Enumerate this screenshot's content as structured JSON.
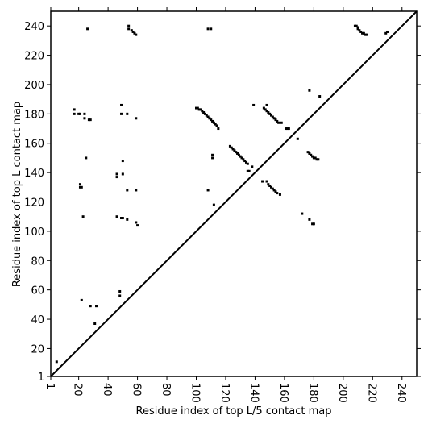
{
  "chart_data": {
    "type": "scatter",
    "xlabel": "Residue index of top L/5 contact map",
    "ylabel": "Residue index of top L contact map",
    "xlim": [
      1,
      250
    ],
    "ylim": [
      1,
      250
    ],
    "xticks": [
      1,
      20,
      40,
      60,
      80,
      100,
      120,
      140,
      160,
      180,
      200,
      220,
      240
    ],
    "yticks": [
      1,
      20,
      40,
      60,
      80,
      100,
      120,
      140,
      160,
      180,
      200,
      220,
      240
    ],
    "diagonal": true,
    "color": "#000000",
    "x": [
      5,
      26,
      54,
      54,
      56,
      57,
      58,
      59,
      108,
      110,
      208,
      209,
      210,
      210,
      211,
      212,
      213,
      214,
      215,
      216,
      229,
      230,
      17,
      17,
      20,
      21,
      24,
      24,
      27,
      28,
      49,
      49,
      53,
      59,
      25,
      21,
      21,
      22,
      46,
      46,
      50,
      50,
      53,
      59,
      108,
      111,
      111,
      112,
      23,
      46,
      49,
      50,
      53,
      59,
      60,
      22,
      48,
      48,
      28,
      32,
      31,
      100,
      101,
      102,
      103,
      104,
      105,
      106,
      107,
      108,
      109,
      110,
      111,
      112,
      113,
      114,
      115,
      123,
      124,
      125,
      126,
      127,
      128,
      129,
      130,
      131,
      132,
      133,
      134,
      135,
      135,
      136,
      138,
      139,
      146,
      147,
      148,
      149,
      150,
      151,
      152,
      153,
      154,
      155,
      156,
      158,
      148,
      161,
      162,
      163,
      169,
      176,
      177,
      178,
      179,
      180,
      181,
      182,
      183,
      177,
      184,
      145,
      148,
      149,
      150,
      151,
      152,
      153,
      154,
      155,
      157,
      172,
      177,
      179,
      180
    ],
    "y": [
      11,
      238,
      240,
      238,
      237,
      236,
      235,
      234,
      238,
      238,
      240,
      240,
      239,
      238,
      237,
      236,
      235,
      235,
      234,
      234,
      235,
      236,
      183,
      180,
      180,
      180,
      180,
      177,
      176,
      176,
      186,
      180,
      180,
      177,
      150,
      132,
      130,
      130,
      139,
      137,
      139,
      148,
      128,
      128,
      128,
      152,
      150,
      118,
      110,
      110,
      109,
      109,
      108,
      106,
      104,
      53,
      59,
      56,
      49,
      49,
      37,
      184,
      184,
      183,
      183,
      182,
      181,
      180,
      179,
      178,
      177,
      176,
      175,
      174,
      173,
      172,
      170,
      158,
      157,
      156,
      155,
      154,
      153,
      152,
      151,
      150,
      149,
      148,
      147,
      146,
      141,
      141,
      144,
      186,
      184,
      183,
      182,
      181,
      180,
      179,
      178,
      177,
      176,
      175,
      174,
      174,
      186,
      170,
      170,
      170,
      163,
      154,
      153,
      152,
      151,
      150,
      150,
      149,
      149,
      196,
      192,
      134,
      134,
      132,
      131,
      130,
      129,
      128,
      127,
      126,
      125,
      112,
      108,
      105,
      105
    ]
  }
}
